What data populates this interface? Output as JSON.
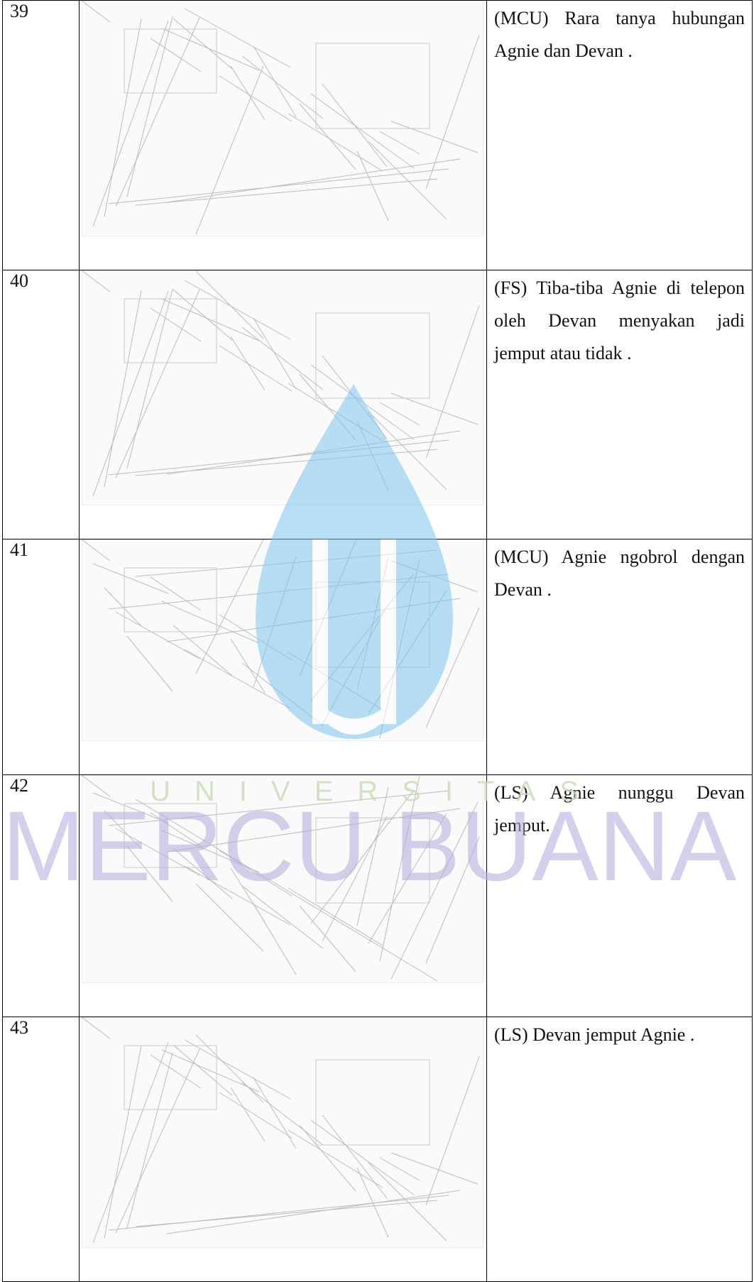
{
  "table": {
    "rows": [
      [
        "39",
        "(MCU) Rara tanya hubungan Agnie dan Devan ."
      ],
      [
        "40",
        "(FS) Tiba-tiba Agnie di telepon oleh Devan menyakan jadi jemput atau tidak ."
      ],
      [
        "41",
        "(MCU) Agnie ngobrol dengan Devan ."
      ],
      [
        "42",
        "(LS) Agnie nunggu Devan jemput."
      ],
      [
        "43",
        "(LS) Devan jemput Agnie ."
      ]
    ]
  },
  "watermark": {
    "subtitle": "UNIVERSITAS",
    "title": "MERCU BUANA"
  }
}
